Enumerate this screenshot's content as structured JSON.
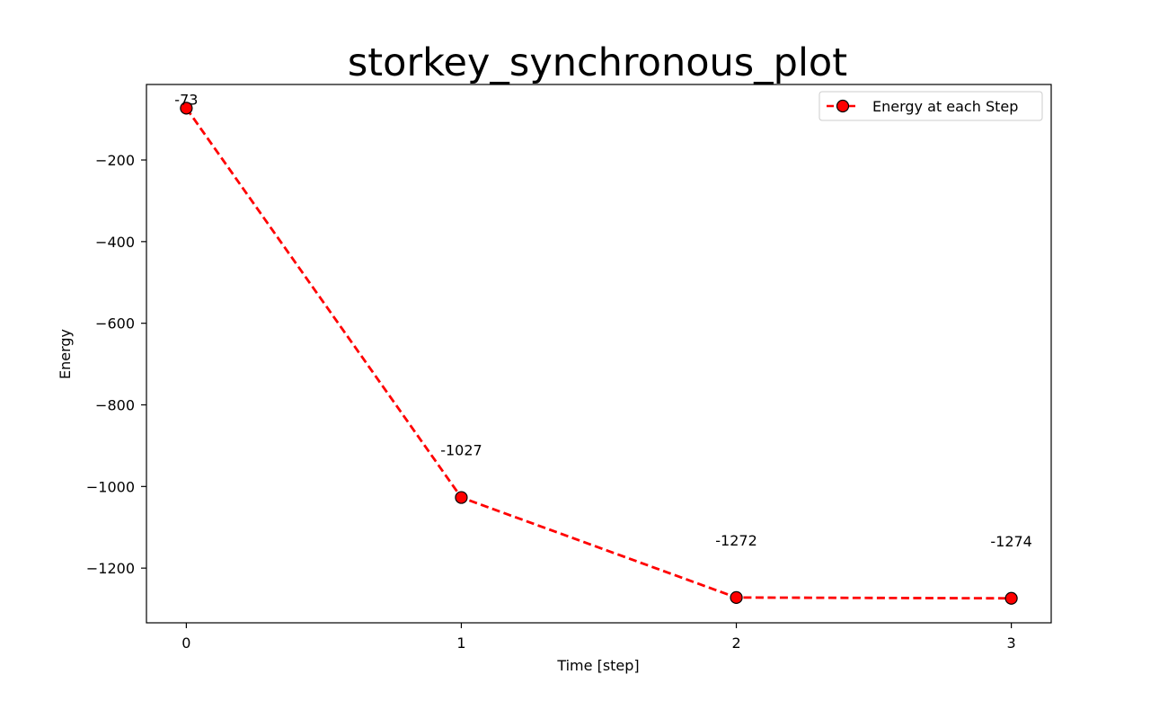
{
  "chart_data": {
    "type": "line",
    "title": "storkey_synchronous_plot",
    "xlabel": "Time [step]",
    "ylabel": "Energy",
    "x": [
      0,
      1,
      2,
      3
    ],
    "series": [
      {
        "name": "Energy at each Step",
        "values": [
          -73,
          -1027,
          -1272,
          -1274
        ],
        "color": "#ff0000",
        "marker_color": "#ff0000",
        "marker_edge_color": "#000000",
        "line_style": "dashed",
        "marker": "circle"
      }
    ],
    "data_labels": [
      "-73",
      "-1027",
      "-1272",
      "-1274"
    ],
    "xticks": [
      0,
      1,
      2,
      3
    ],
    "xtick_labels": [
      "0",
      "1",
      "2",
      "3"
    ],
    "yticks": [
      -200,
      -400,
      -600,
      -800,
      -1000,
      -1200
    ],
    "ytick_labels": [
      "−200",
      "−400",
      "−600",
      "−800",
      "−1000",
      "−1200"
    ],
    "xlim": [
      -0.145,
      3.145
    ],
    "ylim": [
      -1334,
      -15
    ],
    "grid": false,
    "legend_position": "top-right"
  }
}
